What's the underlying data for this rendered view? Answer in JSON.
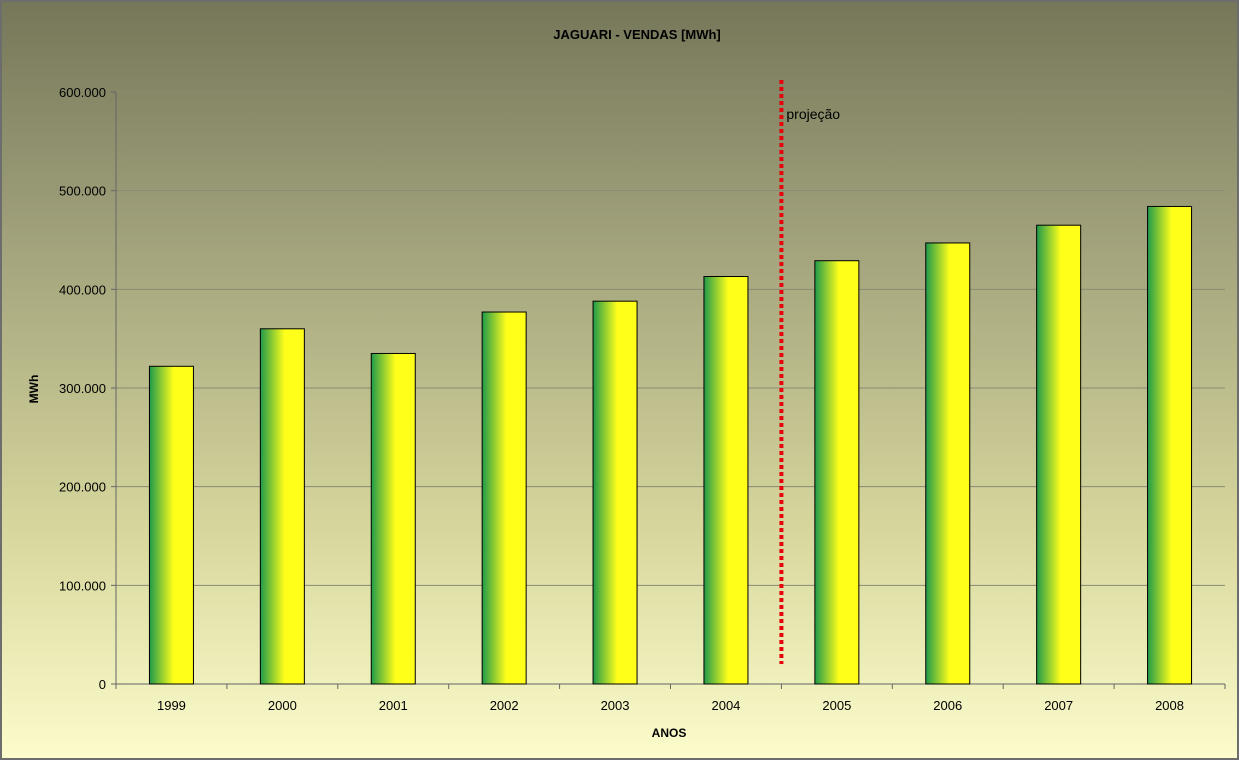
{
  "chart_data": {
    "type": "bar",
    "title": "JAGUARI - VENDAS [MWh]",
    "xlabel": "ANOS",
    "ylabel": "MWh",
    "categories": [
      "1999",
      "2000",
      "2001",
      "2002",
      "2003",
      "2004",
      "2005",
      "2006",
      "2007",
      "2008"
    ],
    "values": [
      322000,
      360000,
      335000,
      377000,
      388000,
      413000,
      429000,
      447000,
      465000,
      484000
    ],
    "ylim": [
      0,
      600000
    ],
    "yticks": [
      0,
      100000,
      200000,
      300000,
      400000,
      500000,
      600000
    ],
    "ytick_labels": [
      "0",
      "100.000",
      "200.000",
      "300.000",
      "400.000",
      "500.000",
      "600.000"
    ],
    "grid": true,
    "legend": "none",
    "annotation": {
      "text": "projeção",
      "between": [
        "2004",
        "2005"
      ],
      "line_color": "#e8000b"
    },
    "colors": {
      "bar_edge": "#1f9a4a",
      "bar_center": "#ffff1a",
      "bar_outline": "#000000"
    }
  }
}
